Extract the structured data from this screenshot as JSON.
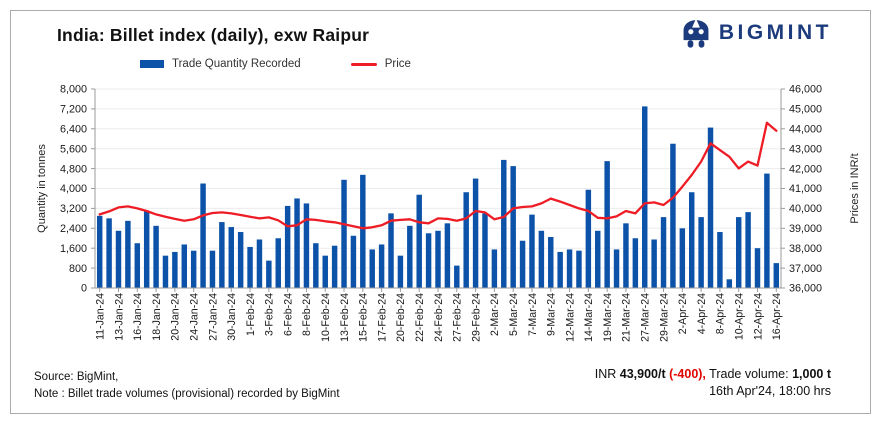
{
  "header": {
    "title": "India: Billet index (daily), exw Raipur",
    "logo_text": "BIGMINT"
  },
  "legend": {
    "bars": "Trade Quantity Recorded",
    "line": "Price"
  },
  "footer": {
    "source": "Source: BigMint,",
    "note": "Note : Billet trade volumes (provisional) recorded by BigMint",
    "price_prefix": "INR ",
    "price_value": "43,900/t ",
    "price_change": "(-400),",
    "volume_label": " Trade volume: ",
    "volume_value": "1,000 t",
    "timestamp": "16th Apr'24, 18:00 hrs"
  },
  "colors": {
    "bar": "#0b52a8",
    "line": "#ee1c25",
    "logo": "#1c3b7c",
    "change": "#e10600",
    "grid": "#ececec",
    "axis": "#9b9b9b"
  },
  "chart_data": {
    "type": "bar",
    "title": "India: Billet index (daily), exw Raipur",
    "ylabel_left": "Quantity in tonnes",
    "ylabel_right": "Prices in INR/t",
    "ylim_left": [
      0,
      8000
    ],
    "ytick_step_left": 800,
    "ylim_right": [
      36000,
      46000
    ],
    "ytick_step_right": 1000,
    "grid": true,
    "legend_position": "top",
    "label_every": 2,
    "x_tick_labels": [
      "11-Jan-24",
      "13-Jan-24",
      "16-Jan-24",
      "18-Jan-24",
      "20-Jan-24",
      "24-Jan-24",
      "27-Jan-24",
      "30-Jan-24",
      "1-Feb-24",
      "3-Feb-24",
      "6-Feb-24",
      "8-Feb-24",
      "10-Feb-24",
      "13-Feb-24",
      "15-Feb-24",
      "17-Feb-24",
      "20-Feb-24",
      "22-Feb-24",
      "24-Feb-24",
      "27-Feb-24",
      "29-Feb-24",
      "2-Mar-24",
      "5-Mar-24",
      "7-Mar-24",
      "9-Mar-24",
      "12-Mar-24",
      "14-Mar-24",
      "19-Mar-24",
      "21-Mar-24",
      "27-Mar-24",
      "29-Mar-24",
      "2-Apr-24",
      "4-Apr-24",
      "8-Apr-24",
      "10-Apr-24",
      "12-Apr-24",
      "16-Apr-24"
    ],
    "series": [
      {
        "name": "Trade Quantity Recorded",
        "type": "bar",
        "axis": "left",
        "values": [
          2900,
          2800,
          2300,
          2700,
          1800,
          3100,
          2500,
          1300,
          1450,
          1750,
          1500,
          4200,
          1500,
          2650,
          2450,
          2250,
          1650,
          1950,
          1100,
          2000,
          3300,
          3600,
          3400,
          1800,
          1300,
          1700,
          4350,
          2100,
          4550,
          1550,
          1750,
          3000,
          1300,
          2500,
          3750,
          2200,
          2300,
          2600,
          900,
          3850,
          4400,
          3000,
          1550,
          5150,
          4900,
          1900,
          2950,
          2300,
          2050,
          1450,
          1550,
          1500,
          3950,
          2300,
          5100,
          1550,
          2600,
          2000,
          7300,
          1950,
          2850,
          5800,
          2400,
          3850,
          2850,
          6450,
          2250,
          350,
          2850,
          3050,
          1600,
          4600,
          1000
        ]
      },
      {
        "name": "Price",
        "type": "line",
        "axis": "right",
        "values": [
          39700,
          39850,
          40050,
          40100,
          40000,
          39870,
          39700,
          39580,
          39470,
          39380,
          39450,
          39650,
          39770,
          39800,
          39750,
          39670,
          39580,
          39500,
          39550,
          39400,
          39100,
          39150,
          39450,
          39420,
          39350,
          39300,
          39200,
          39100,
          39000,
          39050,
          39150,
          39380,
          39420,
          39450,
          39300,
          39250,
          39500,
          39470,
          39380,
          39500,
          39870,
          39800,
          39450,
          39570,
          40000,
          40070,
          40100,
          40250,
          40490,
          40340,
          40170,
          40000,
          39870,
          39530,
          39500,
          39600,
          39870,
          39750,
          40250,
          40300,
          40170,
          40540,
          41090,
          41680,
          42350,
          43270,
          42930,
          42600,
          42010,
          42350,
          42150,
          44300,
          43900
        ]
      }
    ]
  }
}
